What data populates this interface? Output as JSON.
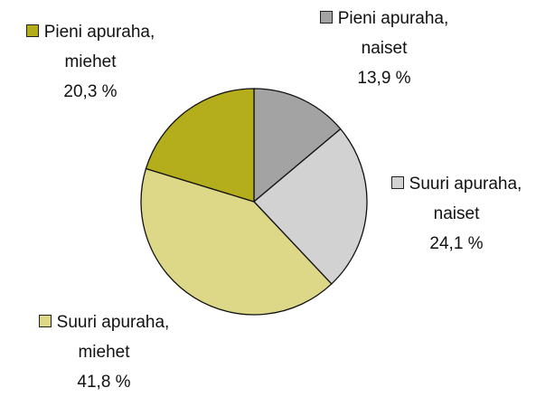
{
  "chart_data": {
    "type": "pie",
    "categories": [
      "Pieni apuraha, naiset",
      "Suuri apuraha, naiset",
      "Suuri apuraha, miehet",
      "Pieni apuraha, miehet"
    ],
    "values": [
      13.9,
      24.1,
      41.8,
      20.3
    ],
    "value_labels": [
      "13,9 %",
      "24,1 %",
      "41,8 %",
      "20,3 %"
    ],
    "colors": [
      "#a3a3a3",
      "#d2d2d2",
      "#dcd887",
      "#b4ad1c"
    ]
  }
}
